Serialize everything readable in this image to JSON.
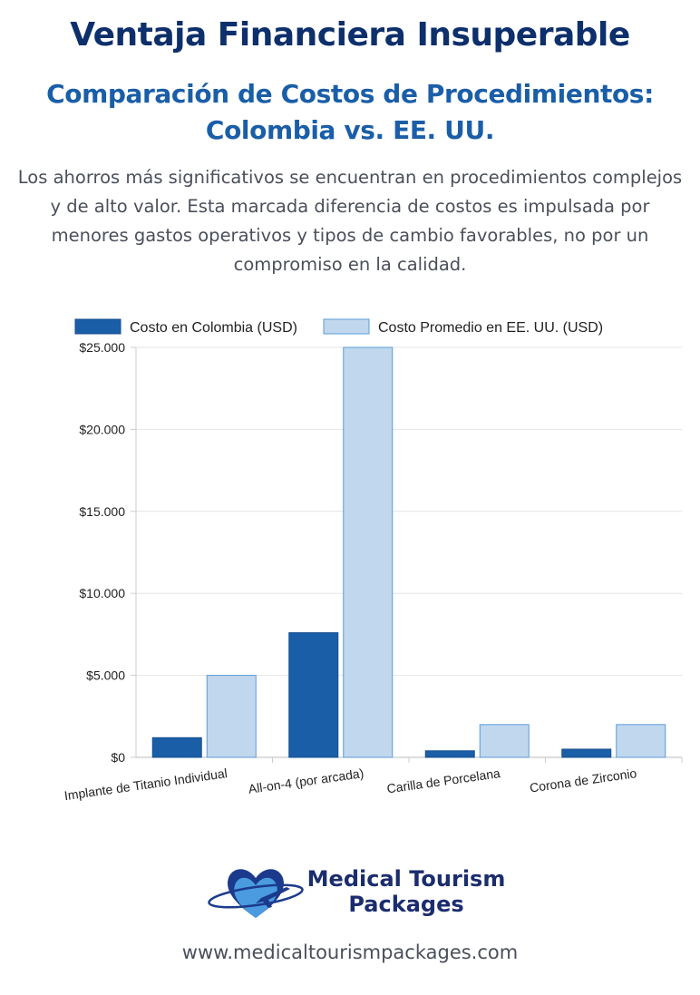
{
  "header": {
    "title": "Ventaja Financiera Insuperable",
    "subtitle": "Comparación de Costos de Procedimientos: Colombia vs. EE. UU.",
    "description": "Los ahorros más significativos se encuentran en procedimientos complejos y de alto valor. Esta marcada diferencia de costos es impulsada por menores gastos operativos y tipos de cambio favorables, no por un compromiso en la calidad."
  },
  "chart_data": {
    "type": "bar",
    "categories": [
      "Implante de Titanio Individual",
      "All-on-4 (por arcada)",
      "Carilla de Porcelana",
      "Corona de Zirconio"
    ],
    "series": [
      {
        "name": "Costo en Colombia (USD)",
        "values": [
          1200,
          7600,
          400,
          500
        ],
        "color": "#1a5ea8"
      },
      {
        "name": "Costo Promedio en EE. UU. (USD)",
        "values": [
          5000,
          25000,
          2000,
          2000
        ],
        "color": "#c0d7ee"
      }
    ],
    "ylim": [
      0,
      25000
    ],
    "yticks": [
      "$0",
      "$5.000",
      "$10.000",
      "$15.000",
      "$20.000",
      "$25.000"
    ],
    "ytick_values": [
      0,
      5000,
      10000,
      15000,
      20000,
      25000
    ],
    "grid": true,
    "legend": "top"
  },
  "footer": {
    "brand_line1": "Medical Tourism",
    "brand_line2": "Packages",
    "url": "www.medicaltourismpackages.com",
    "logo_icon": "heart-airplane-icon",
    "colors": {
      "heart_dark": "#1b3a8c",
      "heart_light": "#4a9be0"
    }
  }
}
